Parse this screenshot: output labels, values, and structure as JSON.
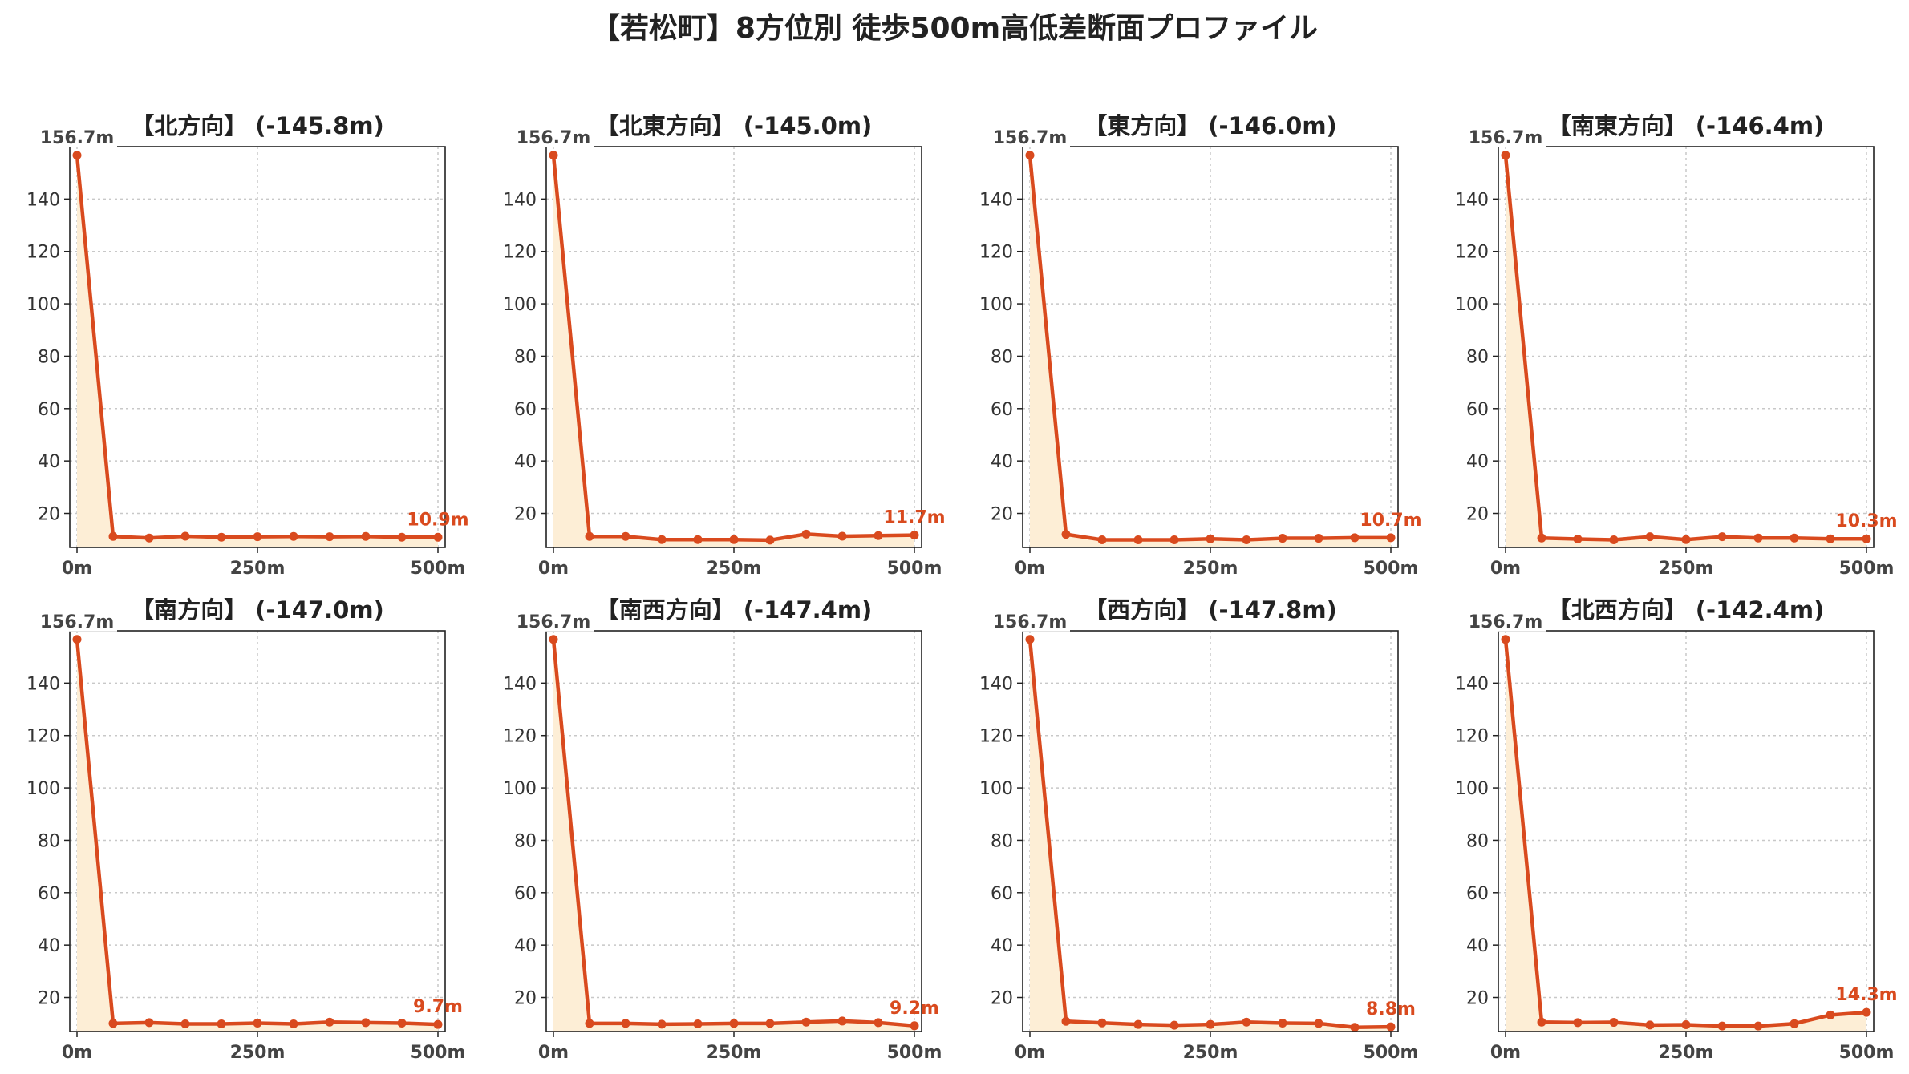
{
  "figure": {
    "title": "【若松町】8方位別 徒歩500m高低差断面プロファイル"
  },
  "colors": {
    "line": "#d94a1e",
    "fill": "#fdeed6",
    "grid": "#c8c8c8",
    "axis": "#222222",
    "start_label": "#444444",
    "end_label": "#d94a1e"
  },
  "chart_data": [
    {
      "type": "area",
      "title": "【北方向】 (-145.8m)",
      "x": [
        0,
        50,
        100,
        150,
        200,
        250,
        300,
        350,
        400,
        450,
        500
      ],
      "y": [
        156.7,
        11.2,
        10.6,
        11.3,
        10.9,
        11.1,
        11.2,
        11.1,
        11.2,
        10.9,
        10.9
      ],
      "start_label": "156.7m",
      "end_label": "10.9m",
      "xticks": [
        0,
        250,
        500
      ],
      "xtick_labels": [
        "0m",
        "250m",
        "500m"
      ],
      "yticks": [
        20,
        40,
        60,
        80,
        100,
        120,
        140
      ],
      "ytick_labels": [
        "20",
        "40",
        "60",
        "80",
        "100",
        "120",
        "140"
      ],
      "xlim": [
        -10,
        510
      ],
      "ylim": [
        7,
        160
      ],
      "grid": true
    },
    {
      "type": "area",
      "title": "【北東方向】 (-145.0m)",
      "x": [
        0,
        50,
        100,
        150,
        200,
        250,
        300,
        350,
        400,
        450,
        500
      ],
      "y": [
        156.7,
        11.2,
        11.2,
        10.0,
        10.0,
        10.0,
        9.8,
        12.1,
        11.3,
        11.5,
        11.7
      ],
      "start_label": "156.7m",
      "end_label": "11.7m",
      "xticks": [
        0,
        250,
        500
      ],
      "xtick_labels": [
        "0m",
        "250m",
        "500m"
      ],
      "yticks": [
        20,
        40,
        60,
        80,
        100,
        120,
        140
      ],
      "ytick_labels": [
        "20",
        "40",
        "60",
        "80",
        "100",
        "120",
        "140"
      ],
      "xlim": [
        -10,
        510
      ],
      "ylim": [
        7,
        160
      ],
      "grid": true
    },
    {
      "type": "area",
      "title": "【東方向】 (-146.0m)",
      "x": [
        0,
        50,
        100,
        150,
        200,
        250,
        300,
        350,
        400,
        450,
        500
      ],
      "y": [
        156.7,
        12.0,
        9.9,
        9.9,
        9.9,
        10.3,
        9.9,
        10.5,
        10.5,
        10.7,
        10.7
      ],
      "start_label": "156.7m",
      "end_label": "10.7m",
      "xticks": [
        0,
        250,
        500
      ],
      "xtick_labels": [
        "0m",
        "250m",
        "500m"
      ],
      "yticks": [
        20,
        40,
        60,
        80,
        100,
        120,
        140
      ],
      "ytick_labels": [
        "20",
        "40",
        "60",
        "80",
        "100",
        "120",
        "140"
      ],
      "xlim": [
        -10,
        510
      ],
      "ylim": [
        7,
        160
      ],
      "grid": true
    },
    {
      "type": "area",
      "title": "【南東方向】 (-146.4m)",
      "x": [
        0,
        50,
        100,
        150,
        200,
        250,
        300,
        350,
        400,
        450,
        500
      ],
      "y": [
        156.7,
        10.6,
        10.2,
        9.9,
        11.1,
        10.0,
        11.1,
        10.6,
        10.6,
        10.3,
        10.3
      ],
      "start_label": "156.7m",
      "end_label": "10.3m",
      "xticks": [
        0,
        250,
        500
      ],
      "xtick_labels": [
        "0m",
        "250m",
        "500m"
      ],
      "yticks": [
        20,
        40,
        60,
        80,
        100,
        120,
        140
      ],
      "ytick_labels": [
        "20",
        "40",
        "60",
        "80",
        "100",
        "120",
        "140"
      ],
      "xlim": [
        -10,
        510
      ],
      "ylim": [
        7,
        160
      ],
      "grid": true
    },
    {
      "type": "area",
      "title": "【南方向】 (-147.0m)",
      "x": [
        0,
        50,
        100,
        150,
        200,
        250,
        300,
        350,
        400,
        450,
        500
      ],
      "y": [
        156.7,
        10.1,
        10.4,
        9.9,
        9.9,
        10.2,
        9.9,
        10.6,
        10.4,
        10.2,
        9.7
      ],
      "start_label": "156.7m",
      "end_label": "9.7m",
      "xticks": [
        0,
        250,
        500
      ],
      "xtick_labels": [
        "0m",
        "250m",
        "500m"
      ],
      "yticks": [
        20,
        40,
        60,
        80,
        100,
        120,
        140
      ],
      "ytick_labels": [
        "20",
        "40",
        "60",
        "80",
        "100",
        "120",
        "140"
      ],
      "xlim": [
        -10,
        510
      ],
      "ylim": [
        7,
        160
      ],
      "grid": true
    },
    {
      "type": "area",
      "title": "【南西方向】 (-147.4m)",
      "x": [
        0,
        50,
        100,
        150,
        200,
        250,
        300,
        350,
        400,
        450,
        500
      ],
      "y": [
        156.7,
        10.1,
        10.1,
        9.8,
        9.9,
        10.1,
        10.1,
        10.6,
        11.0,
        10.4,
        9.2
      ],
      "start_label": "156.7m",
      "end_label": "9.2m",
      "xticks": [
        0,
        250,
        500
      ],
      "xtick_labels": [
        "0m",
        "250m",
        "500m"
      ],
      "yticks": [
        20,
        40,
        60,
        80,
        100,
        120,
        140
      ],
      "ytick_labels": [
        "20",
        "40",
        "60",
        "80",
        "100",
        "120",
        "140"
      ],
      "xlim": [
        -10,
        510
      ],
      "ylim": [
        7,
        160
      ],
      "grid": true
    },
    {
      "type": "area",
      "title": "【西方向】 (-147.8m)",
      "x": [
        0,
        50,
        100,
        150,
        200,
        250,
        300,
        350,
        400,
        450,
        500
      ],
      "y": [
        156.7,
        10.9,
        10.3,
        9.7,
        9.4,
        9.7,
        10.6,
        10.2,
        10.1,
        8.6,
        8.8
      ],
      "start_label": "156.7m",
      "end_label": "8.8m",
      "xticks": [
        0,
        250,
        500
      ],
      "xtick_labels": [
        "0m",
        "250m",
        "500m"
      ],
      "yticks": [
        20,
        40,
        60,
        80,
        100,
        120,
        140
      ],
      "ytick_labels": [
        "20",
        "40",
        "60",
        "80",
        "100",
        "120",
        "140"
      ],
      "xlim": [
        -10,
        510
      ],
      "ylim": [
        7,
        160
      ],
      "grid": true
    },
    {
      "type": "area",
      "title": "【北西方向】 (-142.4m)",
      "x": [
        0,
        50,
        100,
        150,
        200,
        250,
        300,
        350,
        400,
        450,
        500
      ],
      "y": [
        156.7,
        10.6,
        10.4,
        10.5,
        9.5,
        9.6,
        9.1,
        9.1,
        10.0,
        13.3,
        14.3
      ],
      "start_label": "156.7m",
      "end_label": "14.3m",
      "xticks": [
        0,
        250,
        500
      ],
      "xtick_labels": [
        "0m",
        "250m",
        "500m"
      ],
      "yticks": [
        20,
        40,
        60,
        80,
        100,
        120,
        140
      ],
      "ytick_labels": [
        "20",
        "40",
        "60",
        "80",
        "100",
        "120",
        "140"
      ],
      "xlim": [
        -10,
        510
      ],
      "ylim": [
        7,
        160
      ],
      "grid": true
    }
  ]
}
